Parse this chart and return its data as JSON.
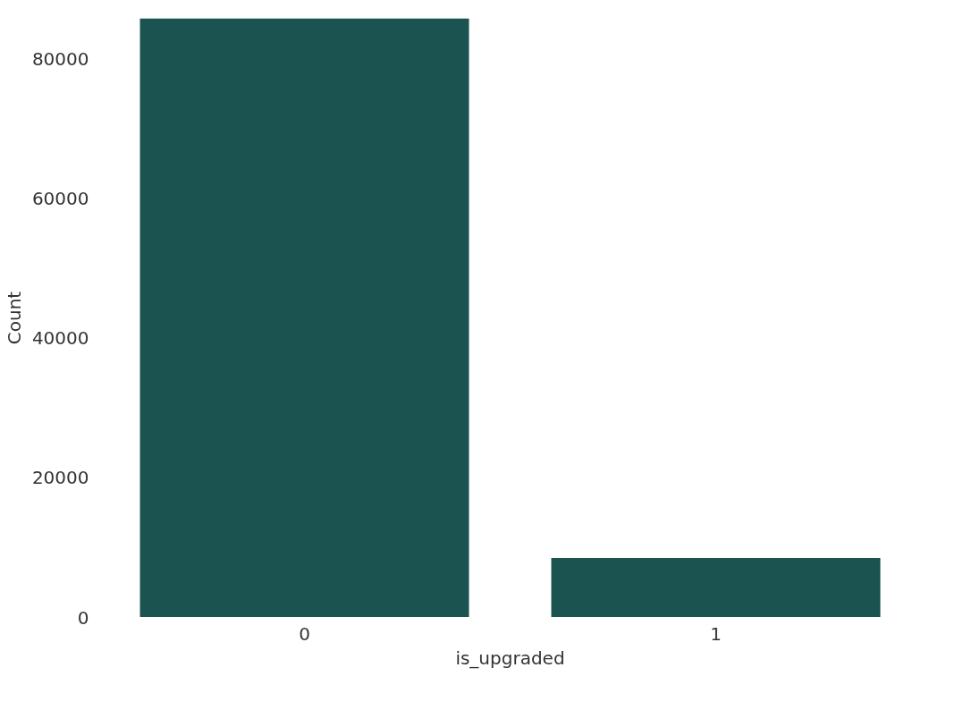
{
  "chart_data": {
    "type": "bar",
    "xlabel": "is_upgraded",
    "ylabel": "Count",
    "categories": [
      "0",
      "1"
    ],
    "values": [
      85800,
      8500
    ],
    "color": "#1b5351",
    "ylim": [
      0,
      85800
    ],
    "yticks": [
      0,
      20000,
      40000,
      60000,
      80000
    ],
    "grid": false
  }
}
